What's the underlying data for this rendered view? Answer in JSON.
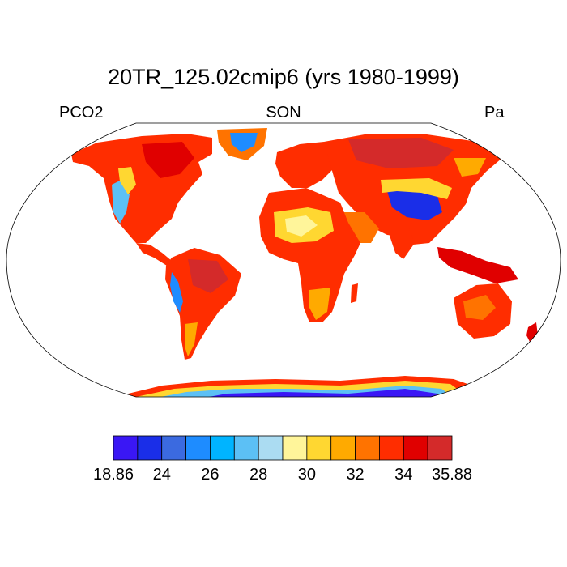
{
  "title": "20TR_125.02cmip6 (yrs 1980-1999)",
  "left_label": "PCO2",
  "center_label": "SON",
  "right_label": "Pa",
  "colorbar": {
    "colors": [
      "#3a17f5",
      "#1a2ee8",
      "#3b6ae0",
      "#1e8cff",
      "#00b4ff",
      "#5cc0f5",
      "#abdcf2",
      "#fff59a",
      "#ffd731",
      "#ffaa00",
      "#ff7300",
      "#ff2d00",
      "#e00000",
      "#d42a2a"
    ],
    "labels": [
      "18.86",
      "24",
      "26",
      "28",
      "30",
      "32",
      "34",
      "35.88"
    ]
  }
}
